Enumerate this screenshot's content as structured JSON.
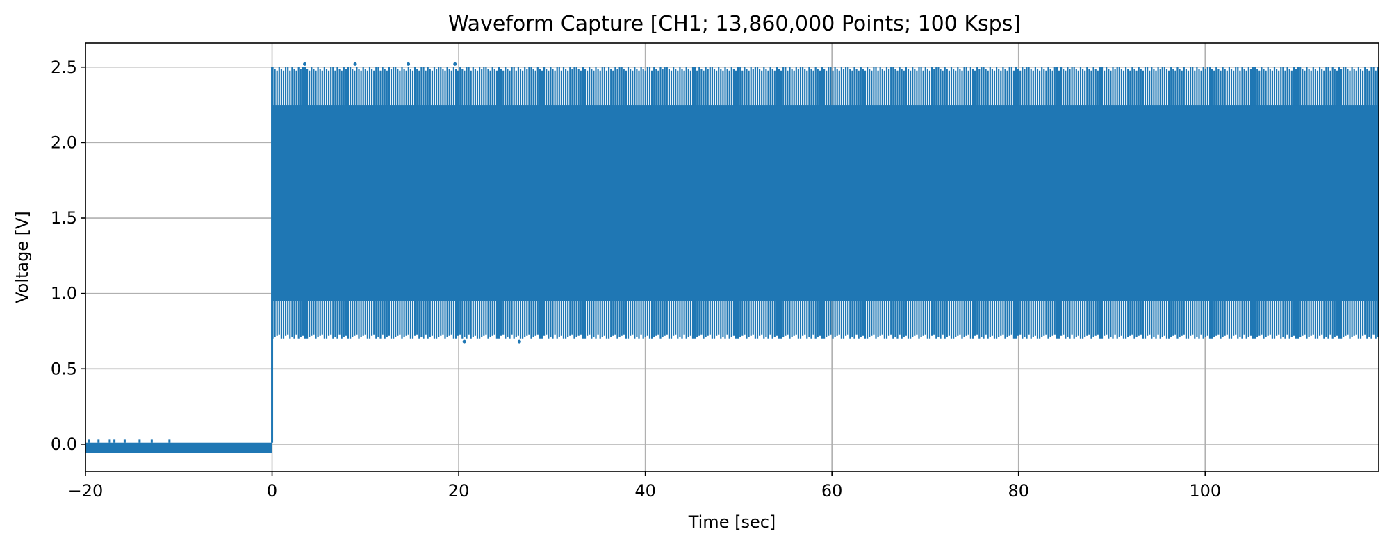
{
  "chart_data": {
    "type": "line",
    "title": "Waveform Capture [CH1; 13,860,000 Points; 100 Ksps]",
    "xlabel": "Time [sec]",
    "ylabel": "Voltage [V]",
    "xlim": [
      -20,
      118.6
    ],
    "ylim": [
      -0.18,
      2.66
    ],
    "xticks": [
      -20,
      0,
      20,
      40,
      60,
      80,
      100
    ],
    "xtick_labels": [
      "−20",
      "0",
      "20",
      "40",
      "60",
      "80",
      "100"
    ],
    "yticks": [
      0.0,
      0.5,
      1.0,
      1.5,
      2.0,
      2.5
    ],
    "ytick_labels": [
      "0.0",
      "0.5",
      "1.0",
      "1.5",
      "2.0",
      "2.5"
    ],
    "grid": true,
    "legend": "none",
    "color": "#1f77b4",
    "series": [
      {
        "segments": [
          {
            "description_note": "baseline before step",
            "x_range": [
              -20,
              0
            ],
            "y_min": -0.06,
            "y_max": 0.01,
            "spikes": [
              {
                "x": -19.6,
                "y": 0.03
              },
              {
                "x": -18.6,
                "y": 0.03
              },
              {
                "x": -17.4,
                "y": 0.03
              },
              {
                "x": -16.9,
                "y": 0.03
              },
              {
                "x": -15.8,
                "y": 0.03
              },
              {
                "x": -14.2,
                "y": 0.03
              },
              {
                "x": -12.9,
                "y": 0.03
              },
              {
                "x": -11.0,
                "y": 0.03
              }
            ]
          },
          {
            "x_range": [
              0,
              118.6
            ],
            "y_min": 0.7,
            "y_max": 2.5,
            "dense_band": [
              0.95,
              2.25
            ],
            "outliers": [
              {
                "x": 20.6,
                "y": 0.68
              },
              {
                "x": 26.5,
                "y": 0.68
              },
              {
                "x": 3.5,
                "y": 2.52
              },
              {
                "x": 8.9,
                "y": 2.52
              },
              {
                "x": 14.6,
                "y": 2.52
              },
              {
                "x": 19.6,
                "y": 2.52
              }
            ]
          }
        ]
      }
    ]
  }
}
